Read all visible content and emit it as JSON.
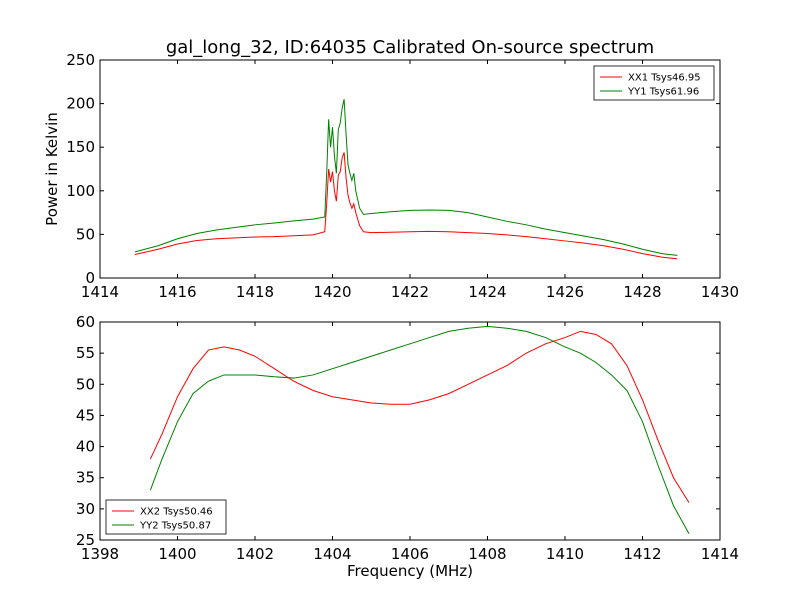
{
  "figure": {
    "title": "gal_long_32, ID:64035 Calibrated On-source spectrum"
  },
  "chart_data": [
    {
      "type": "line",
      "ylabel": "Power in Kelvin",
      "xlabel": "",
      "xlim": [
        1414,
        1430
      ],
      "ylim": [
        0,
        250
      ],
      "xticks": [
        1414,
        1416,
        1418,
        1420,
        1422,
        1424,
        1426,
        1428,
        1430
      ],
      "yticks": [
        0,
        50,
        100,
        150,
        200,
        250
      ],
      "legend_position": "top-right",
      "series": [
        {
          "name": "XX1 Tsys46.95",
          "color": "#ff0000",
          "x": [
            1414.9,
            1415.5,
            1416,
            1416.5,
            1417,
            1417.5,
            1418,
            1418.5,
            1419,
            1419.5,
            1419.8,
            1419.85,
            1419.9,
            1419.95,
            1420.0,
            1420.05,
            1420.1,
            1420.15,
            1420.2,
            1420.25,
            1420.3,
            1420.35,
            1420.4,
            1420.45,
            1420.5,
            1420.55,
            1420.6,
            1420.7,
            1420.8,
            1421,
            1421.5,
            1422,
            1422.5,
            1423,
            1423.5,
            1424,
            1424.5,
            1425,
            1425.5,
            1426,
            1426.5,
            1427,
            1427.5,
            1428,
            1428.5,
            1428.9
          ],
          "y": [
            27,
            33,
            39,
            43,
            45,
            46,
            47,
            47.5,
            48.5,
            49.5,
            53,
            85,
            125,
            110,
            122,
            100,
            88,
            118,
            122,
            138,
            144,
            115,
            95,
            86,
            80,
            85,
            75,
            60,
            53,
            52,
            52.5,
            53,
            53.5,
            53,
            52,
            51,
            49.5,
            47.5,
            45,
            42.5,
            40,
            37,
            33,
            28,
            24,
            22
          ]
        },
        {
          "name": "YY1 Tsys61.96",
          "color": "#008000",
          "x": [
            1414.9,
            1415.5,
            1416,
            1416.5,
            1417,
            1417.5,
            1418,
            1418.5,
            1419,
            1419.5,
            1419.8,
            1419.85,
            1419.9,
            1419.95,
            1420.0,
            1420.05,
            1420.1,
            1420.15,
            1420.2,
            1420.25,
            1420.3,
            1420.35,
            1420.4,
            1420.45,
            1420.5,
            1420.55,
            1420.6,
            1420.7,
            1420.8,
            1421,
            1421.5,
            1422,
            1422.5,
            1423,
            1423.5,
            1424,
            1424.5,
            1425,
            1425.5,
            1426,
            1426.5,
            1427,
            1427.5,
            1428,
            1428.5,
            1428.9
          ],
          "y": [
            30,
            37,
            45,
            51,
            55,
            58,
            61,
            63,
            65.5,
            67.5,
            70,
            120,
            182,
            150,
            173,
            140,
            120,
            170,
            178,
            195,
            205,
            165,
            130,
            120,
            112,
            120,
            100,
            80,
            73,
            74,
            76,
            77.5,
            78,
            77.5,
            75,
            70,
            65,
            61,
            56,
            52,
            48,
            44,
            39,
            33,
            28,
            26
          ]
        }
      ]
    },
    {
      "type": "line",
      "ylabel": "",
      "xlabel": "Frequency (MHz)",
      "xlim": [
        1398,
        1414
      ],
      "ylim": [
        25,
        60
      ],
      "xticks": [
        1398,
        1400,
        1402,
        1404,
        1406,
        1408,
        1410,
        1412,
        1414
      ],
      "yticks": [
        25,
        30,
        35,
        40,
        45,
        50,
        55,
        60
      ],
      "legend_position": "bottom-left",
      "series": [
        {
          "name": "XX2 Tsys50.46",
          "color": "#ff0000",
          "x": [
            1399.3,
            1399.6,
            1400,
            1400.4,
            1400.8,
            1401.2,
            1401.6,
            1402,
            1402.5,
            1403,
            1403.5,
            1404,
            1404.5,
            1405,
            1405.5,
            1406,
            1406.5,
            1407,
            1407.5,
            1408,
            1408.5,
            1409,
            1409.5,
            1410,
            1410.4,
            1410.8,
            1411.2,
            1411.6,
            1412,
            1412.4,
            1412.8,
            1413.2
          ],
          "y": [
            38,
            42,
            48,
            52.5,
            55.5,
            56,
            55.5,
            54.5,
            52.5,
            50.5,
            49,
            48,
            47.5,
            47,
            46.8,
            46.8,
            47.5,
            48.5,
            50,
            51.5,
            53,
            55,
            56.5,
            57.5,
            58.5,
            58,
            56.5,
            53,
            47.5,
            41,
            35,
            31
          ]
        },
        {
          "name": "YY2 Tsys50.87",
          "color": "#008000",
          "x": [
            1399.3,
            1399.6,
            1400,
            1400.4,
            1400.8,
            1401.2,
            1401.6,
            1402,
            1402.5,
            1403,
            1403.5,
            1404,
            1404.5,
            1405,
            1405.5,
            1406,
            1406.5,
            1407,
            1407.5,
            1408,
            1408.5,
            1409,
            1409.5,
            1410,
            1410.4,
            1410.8,
            1411.2,
            1411.6,
            1412,
            1412.4,
            1412.8,
            1413.2
          ],
          "y": [
            33,
            38,
            44,
            48.5,
            50.5,
            51.5,
            51.5,
            51.5,
            51.2,
            51,
            51.5,
            52.5,
            53.5,
            54.5,
            55.5,
            56.5,
            57.5,
            58.5,
            59,
            59.3,
            59,
            58.5,
            57.5,
            56,
            55,
            53.5,
            51.5,
            49,
            44,
            37,
            30.5,
            26
          ]
        }
      ]
    }
  ]
}
